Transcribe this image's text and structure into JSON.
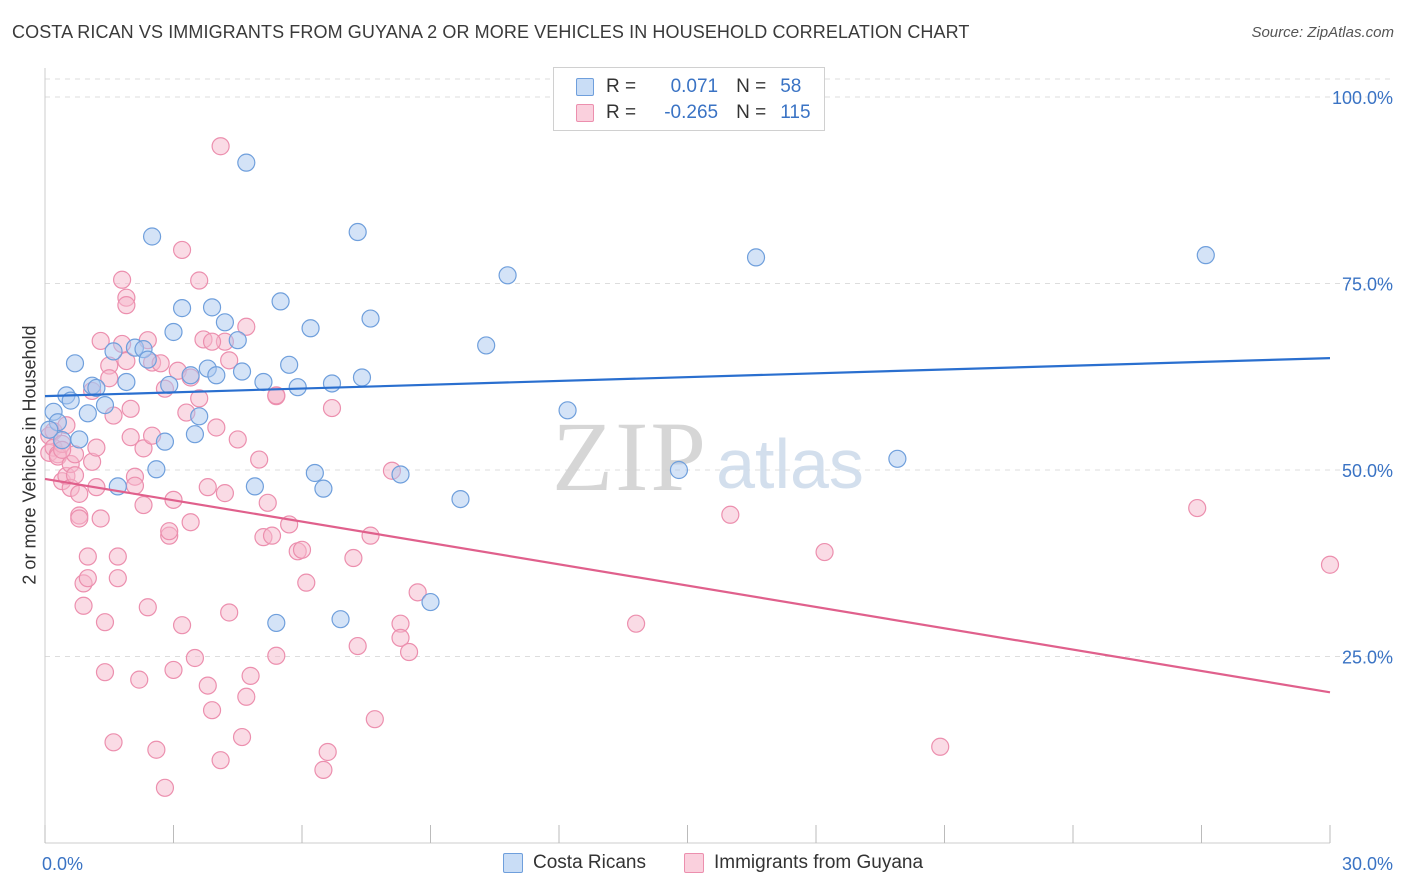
{
  "header": {
    "title": "COSTA RICAN VS IMMIGRANTS FROM GUYANA 2 OR MORE VEHICLES IN HOUSEHOLD CORRELATION CHART",
    "source": "Source: ZipAtlas.com"
  },
  "watermark": {
    "zip": "ZIP",
    "atlas": "atlas"
  },
  "legend": {
    "r_label": "R =",
    "n_label": "N =",
    "series1": {
      "r": "0.071",
      "n": "58"
    },
    "series2": {
      "r": "-0.265",
      "n": "115"
    }
  },
  "bottom_legend": {
    "series1": "Costa Ricans",
    "series2": "Immigrants from Guyana"
  },
  "colors": {
    "blue_fill": "#a9c8f0",
    "blue_stroke": "#6f9fdc",
    "blue_line": "#2a6fcf",
    "pink_fill": "#f6b8cb",
    "pink_stroke": "#ec8fae",
    "pink_line": "#e0608c",
    "axis_label": "#3a73c4",
    "grid": "#dddddd"
  },
  "chart_data": {
    "type": "scatter",
    "title": "COSTA RICAN VS IMMIGRANTS FROM GUYANA 2 OR MORE VEHICLES IN HOUSEHOLD CORRELATION CHART",
    "xlabel": "",
    "ylabel": "2 or more Vehicles in Household",
    "xlim": [
      0,
      30
    ],
    "ylim": [
      0,
      100
    ],
    "x_tick_labels": [
      "0.0%",
      "30.0%"
    ],
    "y_ticks": [
      25,
      50,
      75,
      100
    ],
    "y_tick_labels": [
      "25.0%",
      "50.0%",
      "75.0%",
      "100.0%"
    ],
    "grid": true,
    "legend_position": "top-center",
    "series": [
      {
        "name": "Costa Ricans",
        "r": 0.071,
        "n": 58,
        "trend": {
          "x": [
            0,
            30
          ],
          "y": [
            59.9,
            65.0
          ]
        },
        "points": [
          [
            0.2,
            57.8
          ],
          [
            0.3,
            56.4
          ],
          [
            0.4,
            54.0
          ],
          [
            0.5,
            60.0
          ],
          [
            0.6,
            59.3
          ],
          [
            0.7,
            64.3
          ],
          [
            0.8,
            54.1
          ],
          [
            1.0,
            57.6
          ],
          [
            1.1,
            61.3
          ],
          [
            1.2,
            61.0
          ],
          [
            1.4,
            58.7
          ],
          [
            1.6,
            65.9
          ],
          [
            1.7,
            47.8
          ],
          [
            1.9,
            61.8
          ],
          [
            2.1,
            66.4
          ],
          [
            2.3,
            66.2
          ],
          [
            2.4,
            64.8
          ],
          [
            2.5,
            81.3
          ],
          [
            2.6,
            50.1
          ],
          [
            2.8,
            53.8
          ],
          [
            2.9,
            61.4
          ],
          [
            3.0,
            68.5
          ],
          [
            3.2,
            71.7
          ],
          [
            3.4,
            62.7
          ],
          [
            3.5,
            54.8
          ],
          [
            3.6,
            57.2
          ],
          [
            3.8,
            63.6
          ],
          [
            3.9,
            71.8
          ],
          [
            4.0,
            62.7
          ],
          [
            4.2,
            69.8
          ],
          [
            4.5,
            67.4
          ],
          [
            4.6,
            63.2
          ],
          [
            4.7,
            91.2
          ],
          [
            4.9,
            47.8
          ],
          [
            5.1,
            61.8
          ],
          [
            5.4,
            29.5
          ],
          [
            5.5,
            72.6
          ],
          [
            5.7,
            64.1
          ],
          [
            5.9,
            61.1
          ],
          [
            6.2,
            69.0
          ],
          [
            6.3,
            49.6
          ],
          [
            6.5,
            47.5
          ],
          [
            6.7,
            61.6
          ],
          [
            6.9,
            30.0
          ],
          [
            7.3,
            81.9
          ],
          [
            7.4,
            62.4
          ],
          [
            7.6,
            70.3
          ],
          [
            8.3,
            49.4
          ],
          [
            9.0,
            32.3
          ],
          [
            9.7,
            46.1
          ],
          [
            10.3,
            66.7
          ],
          [
            10.8,
            76.1
          ],
          [
            12.2,
            58.0
          ],
          [
            14.8,
            50.0
          ],
          [
            16.6,
            78.5
          ],
          [
            19.9,
            51.5
          ],
          [
            27.1,
            78.8
          ],
          [
            0.1,
            55.4
          ]
        ]
      },
      {
        "name": "Immigrants from Guyana",
        "r": -0.265,
        "n": 115,
        "trend": {
          "x": [
            0,
            30
          ],
          "y": [
            48.8,
            20.2
          ]
        },
        "points": [
          [
            0.1,
            54.6
          ],
          [
            0.1,
            52.3
          ],
          [
            0.2,
            53.0
          ],
          [
            0.2,
            55.2
          ],
          [
            0.3,
            52.1
          ],
          [
            0.3,
            51.8
          ],
          [
            0.4,
            53.5
          ],
          [
            0.4,
            48.5
          ],
          [
            0.5,
            56.0
          ],
          [
            0.5,
            49.2
          ],
          [
            0.6,
            50.8
          ],
          [
            0.6,
            47.6
          ],
          [
            0.7,
            49.3
          ],
          [
            0.7,
            52.1
          ],
          [
            0.8,
            43.9
          ],
          [
            0.8,
            43.5
          ],
          [
            0.9,
            34.8
          ],
          [
            0.9,
            31.8
          ],
          [
            1.0,
            35.5
          ],
          [
            1.0,
            38.4
          ],
          [
            1.1,
            60.6
          ],
          [
            1.1,
            51.1
          ],
          [
            1.2,
            53.0
          ],
          [
            1.2,
            47.7
          ],
          [
            1.3,
            67.3
          ],
          [
            1.3,
            43.5
          ],
          [
            1.4,
            29.6
          ],
          [
            1.4,
            22.9
          ],
          [
            1.5,
            64.0
          ],
          [
            1.5,
            62.3
          ],
          [
            1.6,
            57.3
          ],
          [
            1.6,
            13.5
          ],
          [
            1.7,
            38.4
          ],
          [
            1.7,
            35.5
          ],
          [
            1.8,
            66.9
          ],
          [
            1.8,
            75.5
          ],
          [
            1.9,
            73.1
          ],
          [
            1.9,
            72.1
          ],
          [
            2.0,
            54.4
          ],
          [
            2.0,
            58.2
          ],
          [
            2.1,
            49.1
          ],
          [
            2.1,
            47.9
          ],
          [
            2.2,
            21.9
          ],
          [
            2.3,
            45.3
          ],
          [
            2.3,
            52.9
          ],
          [
            2.4,
            31.6
          ],
          [
            2.4,
            67.4
          ],
          [
            2.5,
            64.4
          ],
          [
            2.5,
            54.6
          ],
          [
            2.6,
            12.5
          ],
          [
            2.8,
            60.9
          ],
          [
            2.8,
            7.4
          ],
          [
            2.9,
            41.2
          ],
          [
            2.9,
            41.8
          ],
          [
            3.0,
            46.0
          ],
          [
            3.0,
            23.2
          ],
          [
            3.1,
            63.3
          ],
          [
            3.2,
            29.2
          ],
          [
            3.2,
            79.5
          ],
          [
            3.3,
            57.7
          ],
          [
            3.4,
            62.4
          ],
          [
            3.4,
            43.0
          ],
          [
            3.5,
            24.8
          ],
          [
            3.6,
            59.6
          ],
          [
            3.6,
            75.4
          ],
          [
            3.7,
            67.5
          ],
          [
            3.8,
            47.7
          ],
          [
            3.8,
            21.1
          ],
          [
            3.9,
            17.8
          ],
          [
            4.0,
            55.7
          ],
          [
            4.1,
            11.1
          ],
          [
            4.1,
            93.4
          ],
          [
            4.2,
            46.9
          ],
          [
            4.2,
            67.2
          ],
          [
            4.3,
            30.9
          ],
          [
            4.5,
            54.1
          ],
          [
            4.6,
            14.2
          ],
          [
            4.7,
            69.2
          ],
          [
            4.7,
            19.6
          ],
          [
            4.8,
            22.4
          ],
          [
            5.0,
            51.4
          ],
          [
            5.1,
            41.0
          ],
          [
            5.2,
            45.6
          ],
          [
            5.3,
            41.2
          ],
          [
            5.4,
            25.1
          ],
          [
            5.4,
            59.9
          ],
          [
            5.7,
            42.7
          ],
          [
            5.9,
            39.1
          ],
          [
            6.0,
            39.3
          ],
          [
            6.1,
            34.9
          ],
          [
            6.5,
            9.8
          ],
          [
            6.6,
            12.2
          ],
          [
            6.7,
            58.3
          ],
          [
            7.2,
            38.2
          ],
          [
            7.3,
            26.4
          ],
          [
            7.6,
            41.2
          ],
          [
            7.7,
            16.6
          ],
          [
            8.1,
            49.9
          ],
          [
            8.3,
            29.4
          ],
          [
            8.3,
            27.5
          ],
          [
            8.5,
            25.6
          ],
          [
            8.7,
            33.6
          ],
          [
            13.8,
            29.4
          ],
          [
            16.0,
            44.0
          ],
          [
            18.2,
            39.0
          ],
          [
            20.9,
            12.9
          ],
          [
            26.9,
            44.9
          ],
          [
            30.0,
            37.3
          ],
          [
            0.4,
            52.7
          ],
          [
            1.9,
            64.6
          ],
          [
            2.7,
            64.3
          ],
          [
            3.9,
            67.2
          ],
          [
            4.3,
            64.7
          ],
          [
            5.4,
            60.0
          ],
          [
            0.8,
            46.8
          ]
        ]
      }
    ]
  }
}
